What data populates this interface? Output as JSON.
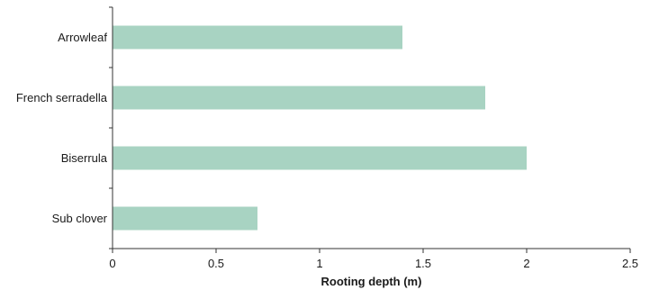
{
  "chart_data": {
    "type": "bar",
    "orientation": "horizontal",
    "categories": [
      "Arrowleaf",
      "French serradella",
      "Biserrula",
      "Sub clover"
    ],
    "values": [
      1.4,
      1.8,
      2.0,
      0.7
    ],
    "title": "",
    "xlabel": "Rooting depth (m)",
    "ylabel": "",
    "xlim": [
      0,
      2.5
    ],
    "xticks": [
      "0",
      "0.5",
      "1",
      "1.5",
      "2",
      "2.5"
    ],
    "grid": false,
    "legend": "none",
    "bar_color": "#a8d3c2"
  }
}
